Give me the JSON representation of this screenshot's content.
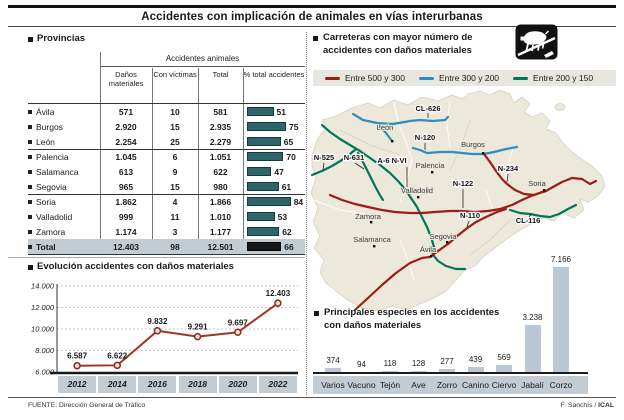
{
  "title": "Accidentes con implicación de animales en vías interurbanas",
  "provinces": {
    "section_title": "Provincias",
    "group_header": "Accidentes animales",
    "columns": [
      "Daños materiales",
      "Con víctimas",
      "Total",
      "% total accidentes"
    ],
    "rows": [
      {
        "name": "Ávila",
        "material": "571",
        "victims": "10",
        "total": "581",
        "pct": 51,
        "pct_label": "51"
      },
      {
        "name": "Burgos",
        "material": "2.920",
        "victims": "15",
        "total": "2.935",
        "pct": 75,
        "pct_label": "75"
      },
      {
        "name": "León",
        "material": "2.254",
        "victims": "25",
        "total": "2.279",
        "pct": 65,
        "pct_label": "65"
      },
      {
        "name": "Palencia",
        "material": "1.045",
        "victims": "6",
        "total": "1.051",
        "pct": 70,
        "pct_label": "70"
      },
      {
        "name": "Salamanca",
        "material": "613",
        "victims": "9",
        "total": "622",
        "pct": 47,
        "pct_label": "47"
      },
      {
        "name": "Segovia",
        "material": "965",
        "victims": "15",
        "total": "980",
        "pct": 61,
        "pct_label": "61"
      },
      {
        "name": "Soria",
        "material": "1.862",
        "victims": "4",
        "total": "1.866",
        "pct": 84,
        "pct_label": "84"
      },
      {
        "name": "Valladolid",
        "material": "999",
        "victims": "11",
        "total": "1.010",
        "pct": 53,
        "pct_label": "53"
      },
      {
        "name": "Zamora",
        "material": "1.174",
        "victims": "3",
        "total": "1.177",
        "pct": 62,
        "pct_label": "62"
      },
      {
        "name": "Total",
        "material": "12.403",
        "victims": "98",
        "total": "12.501",
        "pct": 66,
        "pct_label": "66"
      }
    ]
  },
  "roads_section": {
    "title_line1": "Carreteras con mayor número de",
    "title_line2": "accidentes con daños materiales",
    "icon": "wild-boar-road-sign-icon",
    "legend": [
      {
        "label": "Entre 500 y 300",
        "color": "#9b1d18"
      },
      {
        "label": "Entre 300 y 200",
        "color": "#2e8cc0"
      },
      {
        "label": "Entre 200 y 150",
        "color": "#00755a"
      }
    ]
  },
  "map": {
    "cities": [
      "León",
      "Burgos",
      "Palencia",
      "Valladolid",
      "Zamora",
      "Salamanca",
      "Segovia",
      "Ávila",
      "Soria"
    ],
    "roads": [
      {
        "name": "CL-626",
        "level": "Entre 300 y 200"
      },
      {
        "name": "N-120",
        "level": "Entre 300 y 200"
      },
      {
        "name": "N-525",
        "level": "Entre 200 y 150"
      },
      {
        "name": "N-631",
        "level": "Entre 200 y 150"
      },
      {
        "name": "A-6 N-VI",
        "level": "Entre 200 y 150"
      },
      {
        "name": "N-234",
        "level": "Entre 500 y 300"
      },
      {
        "name": "N-122",
        "level": "Entre 500 y 300"
      },
      {
        "name": "N-110",
        "level": "Entre 500 y 300"
      },
      {
        "name": "CL-116",
        "level": "Entre 200 y 150"
      }
    ]
  },
  "evolution_section": {
    "title": "Evolución accidentes con daños materiales"
  },
  "species_section": {
    "title_line1": "Principales especies en los accidentes",
    "title_line2": "con daños materiales"
  },
  "chart_data": [
    {
      "type": "line",
      "title": "Evolución accidentes con daños materiales",
      "categories": [
        "2012",
        "2014",
        "2016",
        "2018",
        "2020",
        "2022"
      ],
      "values": [
        6587,
        6622,
        9832,
        9291,
        9697,
        12403
      ],
      "value_labels": [
        "6.587",
        "6.622",
        "9.832",
        "9.291",
        "9.697",
        "12.403"
      ],
      "ylim": [
        6000,
        14000
      ],
      "ytick_values": [
        6000,
        8000,
        10000,
        12000,
        14000
      ],
      "ytick_labels": [
        "6.000",
        "8.000",
        "10.000",
        "12.000",
        "14.000"
      ],
      "grid": "dotted-horizontal",
      "line_color": "#a03524",
      "marker_fill": "#eadfd0",
      "marker_stroke": "#8c2a1b"
    },
    {
      "type": "bar",
      "title": "Principales especies en los accidentes con daños materiales",
      "categories": [
        "Varios",
        "Vacuno",
        "Tejón",
        "Ave",
        "Zorro",
        "Canino",
        "Ciervo",
        "Jabalí",
        "Corzo"
      ],
      "values": [
        374,
        94,
        118,
        128,
        277,
        439,
        569,
        3238,
        7166
      ],
      "value_labels": [
        "374",
        "94",
        "118",
        "128",
        "277",
        "439",
        "569",
        "3.238",
        "7.166"
      ],
      "bar_color": "#b9c8d4",
      "ylim": [
        0,
        7166
      ]
    }
  ],
  "footer": {
    "source": "FUENTE: Dirección General de Tráfico",
    "credit_regular": "F. Sanchís /",
    "credit_bold": "ICAL"
  }
}
